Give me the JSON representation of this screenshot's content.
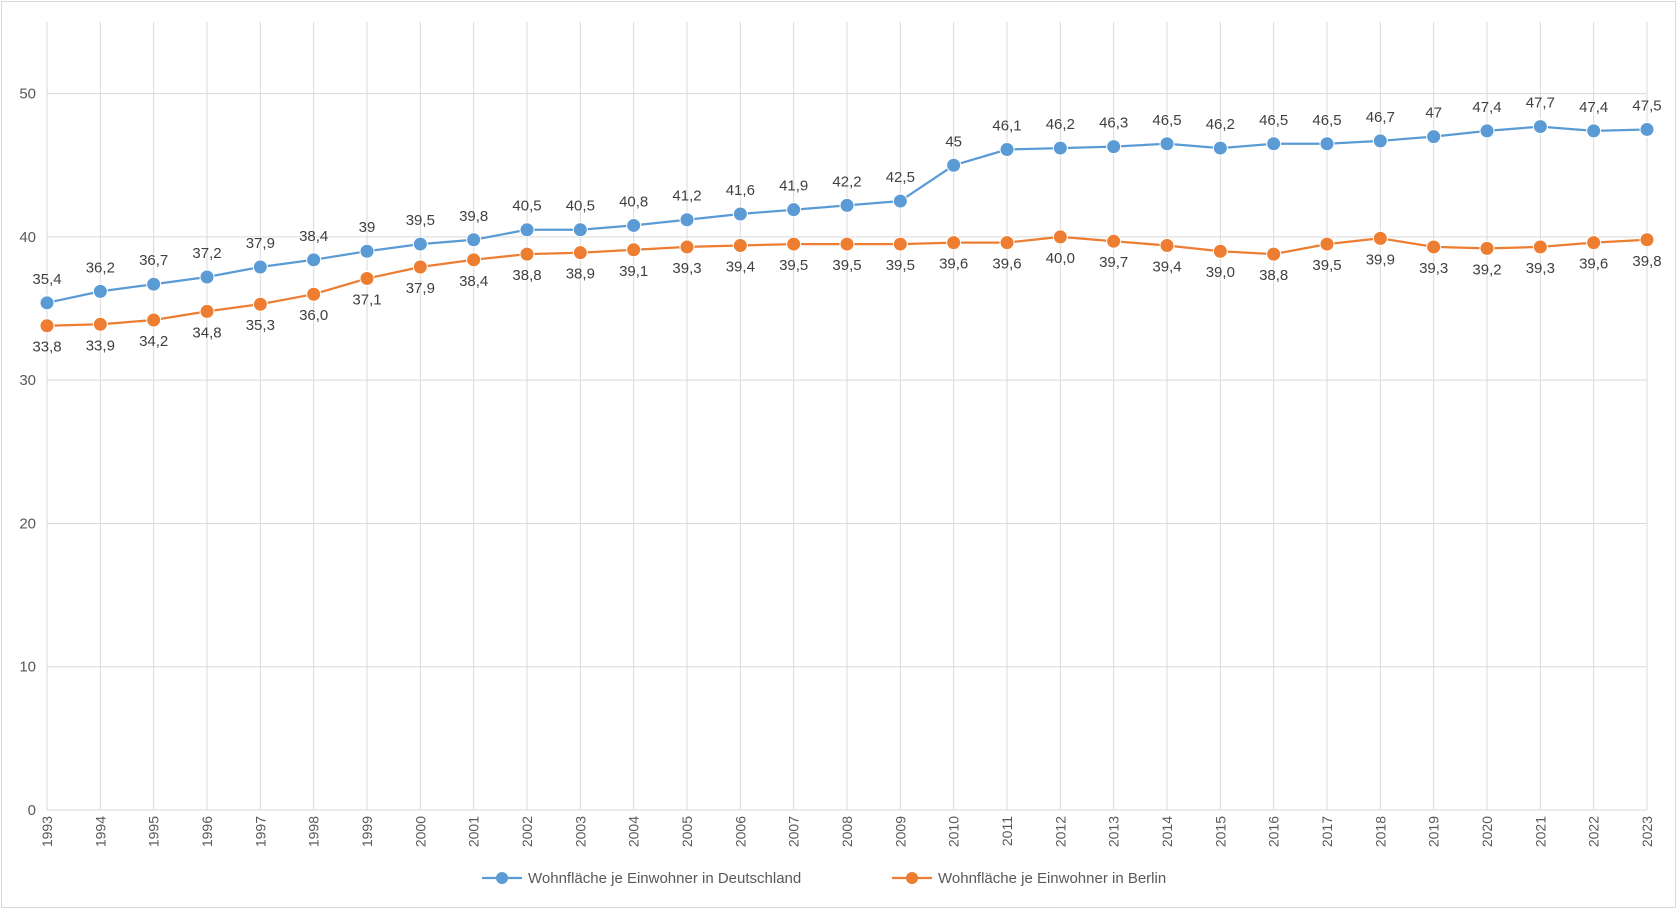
{
  "chart_data": {
    "type": "line",
    "title": "",
    "xlabel": "",
    "ylabel": "",
    "ylim": [
      0,
      55
    ],
    "yticks": [
      0,
      10,
      20,
      30,
      40,
      50
    ],
    "grid": true,
    "legend_position": "bottom",
    "x": [
      "1993",
      "1994",
      "1995",
      "1996",
      "1997",
      "1998",
      "1999",
      "2000",
      "2001",
      "2002",
      "2003",
      "2004",
      "2005",
      "2006",
      "2007",
      "2008",
      "2009",
      "2010",
      "2011",
      "2012",
      "2013",
      "2014",
      "2015",
      "2016",
      "2017",
      "2018",
      "2019",
      "2020",
      "2021",
      "2022",
      "2023"
    ],
    "series": [
      {
        "name": "Wohnfläche je Einwohner  in Deutschland",
        "color": "#5b9bd5",
        "label_position": "above",
        "values": [
          35.4,
          36.2,
          36.7,
          37.2,
          37.9,
          38.4,
          39,
          39.5,
          39.8,
          40.5,
          40.5,
          40.8,
          41.2,
          41.6,
          41.9,
          42.2,
          42.5,
          45,
          46.1,
          46.2,
          46.3,
          46.5,
          46.2,
          46.5,
          46.5,
          46.7,
          47,
          47.4,
          47.7,
          47.4,
          47.5
        ],
        "labels": [
          "35,4",
          "36,2",
          "36,7",
          "37,2",
          "37,9",
          "38,4",
          "39",
          "39,5",
          "39,8",
          "40,5",
          "40,5",
          "40,8",
          "41,2",
          "41,6",
          "41,9",
          "42,2",
          "42,5",
          "45",
          "46,1",
          "46,2",
          "46,3",
          "46,5",
          "46,2",
          "46,5",
          "46,5",
          "46,7",
          "47",
          "47,4",
          "47,7",
          "47,4",
          "47,5"
        ]
      },
      {
        "name": "Wohnfläche je Einwohner  in Berlin",
        "color": "#ed7d31",
        "label_position": "below",
        "values": [
          33.8,
          33.9,
          34.2,
          34.8,
          35.3,
          36.0,
          37.1,
          37.9,
          38.4,
          38.8,
          38.9,
          39.1,
          39.3,
          39.4,
          39.5,
          39.5,
          39.5,
          39.6,
          39.6,
          40.0,
          39.7,
          39.4,
          39.0,
          38.8,
          39.5,
          39.9,
          39.3,
          39.2,
          39.3,
          39.6,
          39.8
        ],
        "labels": [
          "33,8",
          "33,9",
          "34,2",
          "34,8",
          "35,3",
          "36,0",
          "37,1",
          "37,9",
          "38,4",
          "38,8",
          "38,9",
          "39,1",
          "39,3",
          "39,4",
          "39,5",
          "39,5",
          "39,5",
          "39,6",
          "39,6",
          "40,0",
          "39,7",
          "39,4",
          "39,0",
          "38,8",
          "39,5",
          "39,9",
          "39,3",
          "39,2",
          "39,3",
          "39,6",
          "39,8"
        ]
      }
    ]
  }
}
